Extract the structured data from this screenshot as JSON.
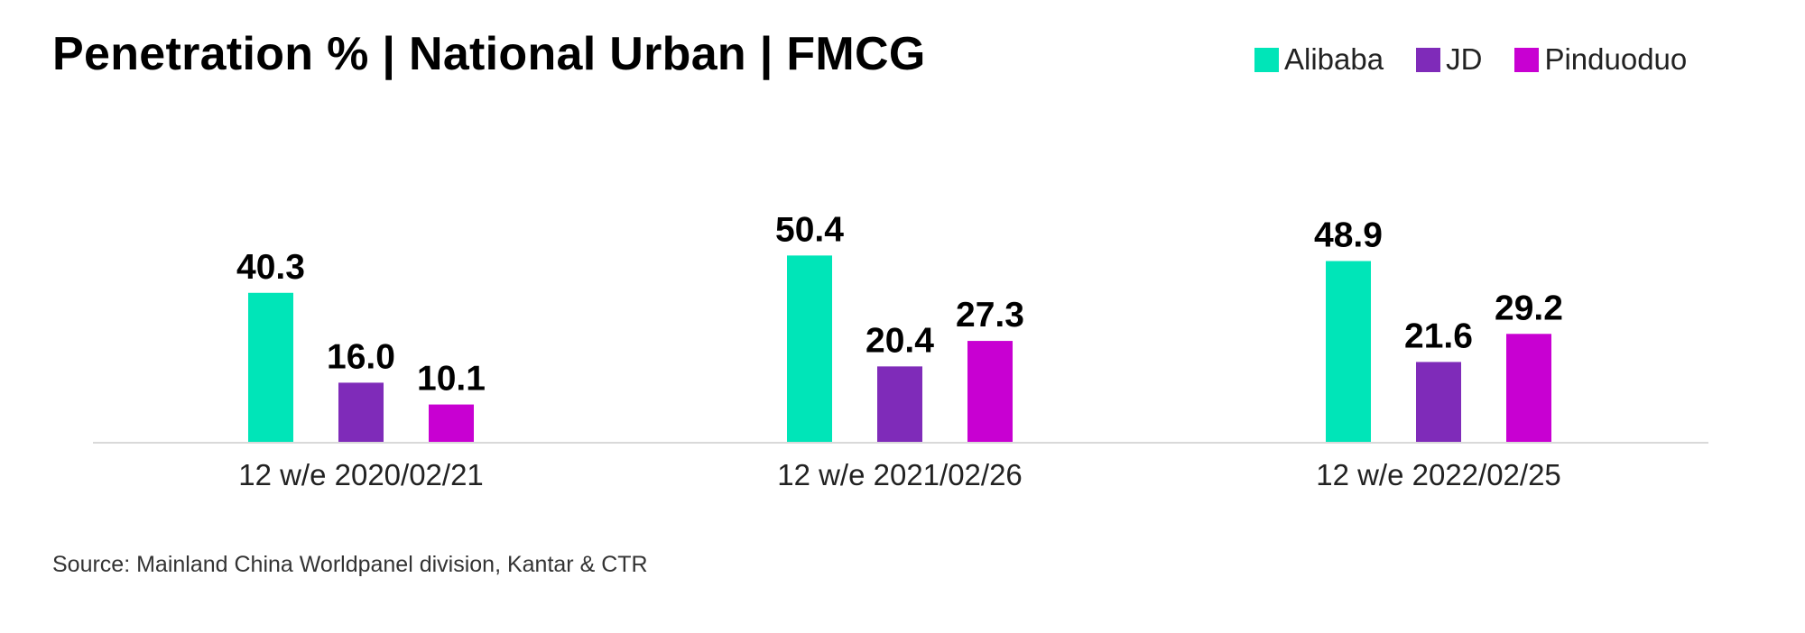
{
  "chart_data": {
    "type": "bar",
    "title": "Penetration % | National Urban | FMCG",
    "categories": [
      "12 w/e 2020/02/21",
      "12 w/e 2021/02/26",
      "12 w/e 2022/02/25"
    ],
    "series": [
      {
        "name": "Alibaba",
        "color": "#00E5B8",
        "values": [
          40.3,
          50.4,
          48.9
        ]
      },
      {
        "name": "JD",
        "color": "#7F2BB9",
        "values": [
          16.0,
          20.4,
          21.6
        ]
      },
      {
        "name": "Pinduoduo",
        "color": "#C800D2",
        "values": [
          10.1,
          27.3,
          29.2
        ]
      }
    ],
    "ylim": [
      0,
      100
    ],
    "grid": false,
    "legend_position": "top-right",
    "data_labels": true,
    "source": "Source: Mainland China Worldpanel division, Kantar & CTR"
  }
}
